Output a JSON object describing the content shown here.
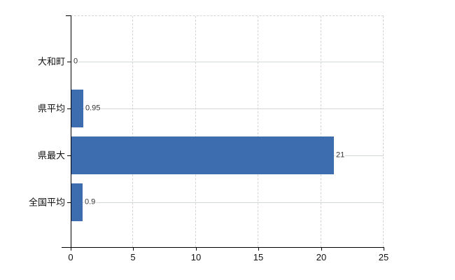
{
  "chart_data": {
    "type": "bar",
    "orientation": "horizontal",
    "title": "",
    "xlabel": "",
    "ylabel": "",
    "categories": [
      "大和町",
      "県平均",
      "県最大",
      "全国平均"
    ],
    "values": [
      0,
      0.95,
      21,
      0.9
    ],
    "value_labels": [
      "0",
      "0.95",
      "21",
      "0.9"
    ],
    "xlim": [
      0,
      25
    ],
    "x_tick_values": [
      0,
      5,
      10,
      15,
      20,
      25
    ],
    "x_tick_labels": [
      "0",
      "5",
      "10",
      "15",
      "20",
      "25"
    ],
    "grid": true,
    "legend": false,
    "colors": {
      "bar": "#3d6dae",
      "grid_vertical": "#d6d2d6",
      "grid_horizontal": "#d2d9d2",
      "plot_border": "#d6d2d6",
      "axis": "#000000",
      "tick_text": "#111111",
      "value_text": "#333333",
      "background": "#ffffff"
    }
  }
}
